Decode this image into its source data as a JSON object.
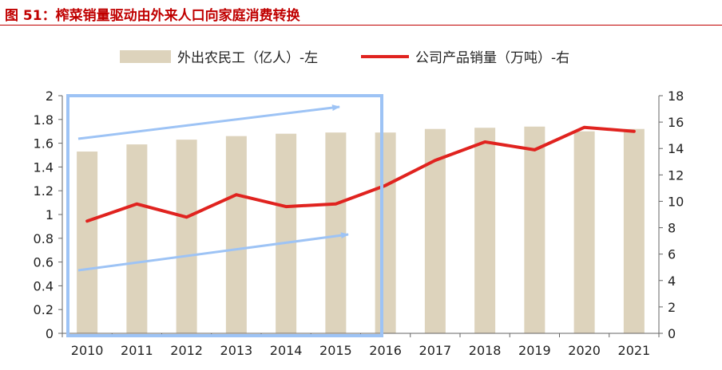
{
  "figure_title": "图 51：榨菜销量驱动由外来人口向家庭消费转换",
  "chart_data": {
    "type": "bar",
    "categories": [
      "2010",
      "2011",
      "2012",
      "2013",
      "2014",
      "2015",
      "2016",
      "2017",
      "2018",
      "2019",
      "2020",
      "2021"
    ],
    "series": [
      {
        "name": "外出农民工（亿人）-左",
        "type": "bar",
        "axis": "left",
        "values": [
          1.53,
          1.59,
          1.63,
          1.66,
          1.68,
          1.69,
          1.69,
          1.72,
          1.73,
          1.74,
          1.7,
          1.72
        ]
      },
      {
        "name": "公司产品销量（万吨）-右",
        "type": "line",
        "axis": "right",
        "values": [
          8.5,
          9.8,
          8.8,
          10.5,
          9.6,
          9.8,
          11.2,
          13.1,
          14.5,
          13.9,
          15.6,
          15.3
        ]
      }
    ],
    "ylim_left": [
      0,
      2
    ],
    "yticks_left": [
      "0",
      "0.2",
      "0.4",
      "0.6",
      "0.8",
      "1",
      "1.2",
      "1.4",
      "1.6",
      "1.8",
      "2"
    ],
    "ylim_right": [
      0,
      18
    ],
    "yticks_right": [
      "0",
      "2",
      "4",
      "6",
      "8",
      "10",
      "12",
      "14",
      "16",
      "18"
    ],
    "legend_position": "top",
    "colors": {
      "bar": "#ddd3bc",
      "line": "#e0231f",
      "highlight_box": "#9dc3f5",
      "arrow": "#9dc3f5",
      "title": "#c00000"
    }
  }
}
